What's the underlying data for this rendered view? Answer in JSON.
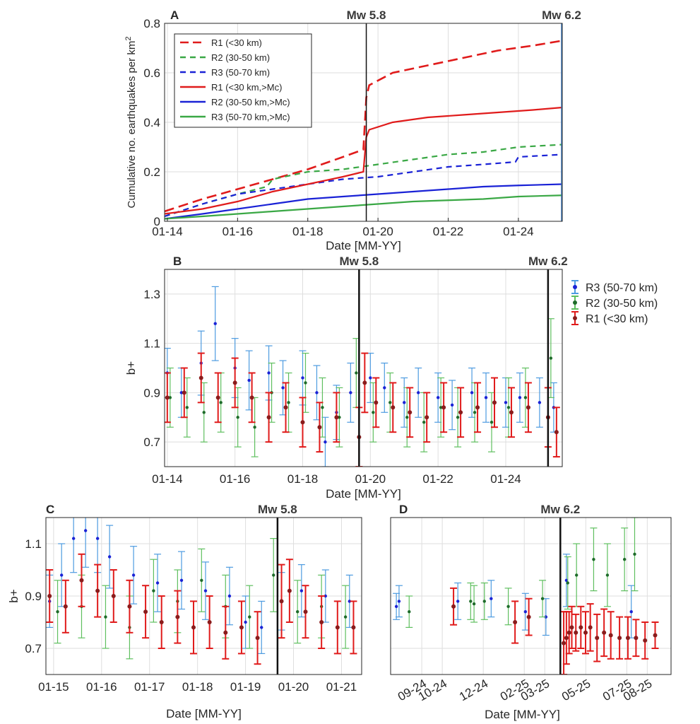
{
  "chart_data": [
    {
      "panel": "A",
      "type": "line",
      "ylabel": "Cumulative no. earthquakes per km",
      "ylabel_sup": "2",
      "xlabel": "Date [MM-YY]",
      "x_ticks": [
        "01-14",
        "01-16",
        "01-18",
        "01-20",
        "01-22",
        "01-24"
      ],
      "y_ticks": [
        "0",
        "0.2",
        "0.4",
        "0.6",
        "0.8"
      ],
      "xlim": [
        "2013-12",
        "2025-04"
      ],
      "ylim": [
        0,
        0.8
      ],
      "grid": true,
      "legend_position": "top-left",
      "events": [
        {
          "label": "Mw 5.8",
          "date": "2019-09"
        },
        {
          "label": "Mw 6.2",
          "date": "2025-04"
        }
      ],
      "series": [
        {
          "name": "R1 (<30 km)",
          "style": "dashed",
          "color": "#e01b1b",
          "x": [
            "2013-12",
            "2015-01",
            "2016-01",
            "2017-01",
            "2018-01",
            "2019-01",
            "2019-08",
            "2019-09",
            "2019-10",
            "2020-06",
            "2021-06",
            "2022-06",
            "2023-06",
            "2024-06",
            "2025-04"
          ],
          "y": [
            0.04,
            0.09,
            0.13,
            0.17,
            0.21,
            0.26,
            0.29,
            0.5,
            0.55,
            0.6,
            0.63,
            0.66,
            0.69,
            0.71,
            0.73
          ]
        },
        {
          "name": "R2 (30-50 km)",
          "style": "dashed",
          "color": "#3aa845",
          "x": [
            "2013-12",
            "2015-01",
            "2016-01",
            "2016-11",
            "2017-01",
            "2018-01",
            "2019-01",
            "2020-01",
            "2021-01",
            "2022-01",
            "2023-01",
            "2024-01",
            "2025-04"
          ],
          "y": [
            0.02,
            0.07,
            0.11,
            0.14,
            0.17,
            0.2,
            0.21,
            0.23,
            0.25,
            0.27,
            0.28,
            0.3,
            0.31
          ]
        },
        {
          "name": "R3 (50-70 km)",
          "style": "dashed",
          "color": "#1a22d6",
          "x": [
            "2013-12",
            "2015-01",
            "2016-01",
            "2017-01",
            "2018-01",
            "2019-01",
            "2020-01",
            "2021-01",
            "2022-01",
            "2023-01",
            "2023-12",
            "2024-01",
            "2025-04"
          ],
          "y": [
            0.02,
            0.07,
            0.11,
            0.13,
            0.15,
            0.17,
            0.18,
            0.2,
            0.22,
            0.23,
            0.24,
            0.26,
            0.27
          ]
        },
        {
          "name": "R1 (<30 km,>Mc)",
          "style": "solid",
          "color": "#e01b1b",
          "x": [
            "2013-12",
            "2015-01",
            "2016-01",
            "2017-01",
            "2018-01",
            "2019-01",
            "2019-08",
            "2019-09",
            "2019-10",
            "2020-06",
            "2021-06",
            "2022-06",
            "2023-06",
            "2024-06",
            "2025-04"
          ],
          "y": [
            0.03,
            0.05,
            0.08,
            0.12,
            0.15,
            0.18,
            0.2,
            0.34,
            0.37,
            0.4,
            0.42,
            0.43,
            0.44,
            0.45,
            0.46
          ]
        },
        {
          "name": "R2 (30-50 km,>Mc)",
          "style": "solid",
          "color": "#1a22d6",
          "x": [
            "2013-12",
            "2015-01",
            "2016-01",
            "2017-01",
            "2018-01",
            "2019-01",
            "2020-01",
            "2021-01",
            "2022-01",
            "2023-01",
            "2024-01",
            "2025-04"
          ],
          "y": [
            0.01,
            0.03,
            0.05,
            0.07,
            0.09,
            0.1,
            0.11,
            0.12,
            0.13,
            0.14,
            0.145,
            0.15
          ]
        },
        {
          "name": "R3 (50-70 km,>Mc)",
          "style": "solid",
          "color": "#3aa845",
          "x": [
            "2013-12",
            "2015-01",
            "2016-01",
            "2017-01",
            "2018-01",
            "2019-01",
            "2020-01",
            "2021-01",
            "2022-01",
            "2023-01",
            "2024-01",
            "2025-04"
          ],
          "y": [
            0.01,
            0.02,
            0.03,
            0.04,
            0.05,
            0.06,
            0.07,
            0.08,
            0.085,
            0.09,
            0.1,
            0.105
          ]
        }
      ]
    },
    {
      "panel": "B",
      "type": "scatter",
      "ylabel": "b+",
      "xlabel": "Date [MM-YY]",
      "x_ticks": [
        "01-14",
        "01-16",
        "01-18",
        "01-20",
        "01-22",
        "01-24"
      ],
      "y_ticks": [
        "0.7",
        "0.9",
        "1.1",
        "1.3"
      ],
      "xlim": [
        "2013-12",
        "2025-09"
      ],
      "ylim": [
        0.6,
        1.4
      ],
      "grid": true,
      "legend_position": "outside-right",
      "events": [
        {
          "label": "Mw 5.8",
          "date": "2019-09"
        },
        {
          "label": "Mw 6.2",
          "date": "2025-04"
        }
      ],
      "series": [
        {
          "name": "R3 (50-70 km)",
          "color": "#1a22d6",
          "error_color": "#4d9be0",
          "x": [
            "2014-01",
            "2014-06",
            "2015-01",
            "2015-06",
            "2016-01",
            "2016-06",
            "2017-01",
            "2017-06",
            "2018-01",
            "2018-06",
            "2018-09",
            "2019-01",
            "2019-06",
            "2020-01",
            "2020-06",
            "2021-01",
            "2021-06",
            "2022-01",
            "2022-06",
            "2023-01",
            "2023-06",
            "2024-01",
            "2024-06",
            "2025-01",
            "2025-06"
          ],
          "y": [
            0.98,
            0.9,
            1.02,
            1.18,
            1.0,
            0.95,
            0.98,
            0.92,
            0.96,
            0.9,
            0.7,
            0.82,
            0.9,
            0.96,
            0.92,
            0.86,
            0.9,
            0.88,
            0.85,
            0.9,
            0.88,
            0.86,
            0.88,
            0.86,
            0.84
          ],
          "err": [
            0.1,
            0.1,
            0.13,
            0.15,
            0.12,
            0.12,
            0.11,
            0.11,
            0.11,
            0.11,
            0.1,
            0.11,
            0.12,
            0.1,
            0.1,
            0.1,
            0.1,
            0.1,
            0.1,
            0.1,
            0.1,
            0.1,
            0.1,
            0.1,
            0.1
          ]
        },
        {
          "name": "R2 (30-50 km)",
          "color": "#1e6b2a",
          "error_color": "#5fbf5f",
          "x": [
            "2014-02",
            "2014-08",
            "2015-02",
            "2015-08",
            "2016-02",
            "2016-08",
            "2017-02",
            "2017-08",
            "2018-02",
            "2018-08",
            "2019-02",
            "2019-08",
            "2020-02",
            "2020-08",
            "2021-02",
            "2021-08",
            "2022-02",
            "2022-08",
            "2023-02",
            "2023-08",
            "2024-02",
            "2024-08",
            "2025-05"
          ],
          "y": [
            0.88,
            0.84,
            0.82,
            0.86,
            0.8,
            0.76,
            0.9,
            0.86,
            0.94,
            0.84,
            0.8,
            0.98,
            0.82,
            0.86,
            0.8,
            0.78,
            0.84,
            0.8,
            0.82,
            0.78,
            0.84,
            0.88,
            1.04
          ],
          "err": [
            0.12,
            0.12,
            0.12,
            0.12,
            0.12,
            0.12,
            0.12,
            0.12,
            0.12,
            0.12,
            0.12,
            0.14,
            0.12,
            0.12,
            0.12,
            0.12,
            0.12,
            0.12,
            0.12,
            0.12,
            0.12,
            0.12,
            0.16
          ]
        },
        {
          "name": "R1 (<30 km)",
          "color": "#8a1c1c",
          "error_color": "#e01b1b",
          "x": [
            "2014-01",
            "2014-07",
            "2015-01",
            "2015-07",
            "2016-01",
            "2016-07",
            "2017-01",
            "2017-07",
            "2018-01",
            "2018-07",
            "2019-01",
            "2019-09",
            "2019-11",
            "2020-03",
            "2020-09",
            "2021-03",
            "2021-09",
            "2022-03",
            "2022-09",
            "2023-03",
            "2023-09",
            "2024-03",
            "2024-09",
            "2025-04",
            "2025-07"
          ],
          "y": [
            0.88,
            0.9,
            0.96,
            0.88,
            0.94,
            0.88,
            0.8,
            0.84,
            0.78,
            0.76,
            0.8,
            0.72,
            0.94,
            0.86,
            0.84,
            0.82,
            0.8,
            0.84,
            0.82,
            0.84,
            0.86,
            0.82,
            0.84,
            0.8,
            0.74
          ],
          "err": [
            0.1,
            0.1,
            0.1,
            0.1,
            0.1,
            0.1,
            0.1,
            0.1,
            0.1,
            0.1,
            0.1,
            0.12,
            0.12,
            0.1,
            0.1,
            0.1,
            0.1,
            0.1,
            0.1,
            0.1,
            0.1,
            0.1,
            0.1,
            0.12,
            0.1
          ]
        }
      ]
    },
    {
      "panel": "C",
      "type": "scatter",
      "ylabel": "b+",
      "xlabel": "Date [MM-YY]",
      "x_ticks": [
        "01-15",
        "01-16",
        "01-17",
        "01-18",
        "01-19",
        "01-20",
        "01-21"
      ],
      "y_ticks": [
        "0.7",
        "0.9",
        "1.1"
      ],
      "xlim": [
        "2014-11",
        "2021-06"
      ],
      "ylim": [
        0.6,
        1.2
      ],
      "grid": true,
      "events": [
        {
          "label": "Mw 5.8",
          "date": "2019-09"
        }
      ],
      "series": [
        {
          "name": "R3 (50-70 km)",
          "color": "#1a22d6",
          "error_color": "#4d9be0",
          "x": [
            "2014-12",
            "2015-03",
            "2015-06",
            "2015-09",
            "2015-12",
            "2016-03",
            "2016-09",
            "2017-03",
            "2017-09",
            "2018-03",
            "2018-09",
            "2019-01",
            "2019-05",
            "2019-10",
            "2020-03",
            "2020-09",
            "2021-03"
          ],
          "y": [
            0.88,
            0.98,
            1.12,
            1.15,
            1.12,
            1.05,
            0.98,
            0.95,
            0.96,
            0.92,
            0.9,
            0.8,
            0.78,
            0.88,
            0.92,
            0.9,
            0.88
          ],
          "err": [
            0.1,
            0.12,
            0.13,
            0.14,
            0.13,
            0.12,
            0.11,
            0.11,
            0.11,
            0.11,
            0.11,
            0.1,
            0.1,
            0.11,
            0.1,
            0.1,
            0.1
          ]
        },
        {
          "name": "R2 (30-50 km)",
          "color": "#1e6b2a",
          "error_color": "#5fbf5f",
          "x": [
            "2015-02",
            "2015-08",
            "2016-02",
            "2016-08",
            "2017-02",
            "2017-08",
            "2018-02",
            "2018-08",
            "2019-02",
            "2019-08",
            "2020-02",
            "2020-08",
            "2021-02"
          ],
          "y": [
            0.84,
            0.86,
            0.82,
            0.78,
            0.92,
            0.88,
            0.96,
            0.86,
            0.82,
            0.98,
            0.84,
            0.86,
            0.82
          ],
          "err": [
            0.12,
            0.12,
            0.12,
            0.12,
            0.12,
            0.12,
            0.12,
            0.12,
            0.12,
            0.14,
            0.12,
            0.12,
            0.12
          ]
        },
        {
          "name": "R1 (<30 km)",
          "color": "#8a1c1c",
          "error_color": "#e01b1b",
          "x": [
            "2014-12",
            "2015-04",
            "2015-08",
            "2015-12",
            "2016-04",
            "2016-08",
            "2016-12",
            "2017-04",
            "2017-08",
            "2017-12",
            "2018-04",
            "2018-08",
            "2018-12",
            "2019-04",
            "2019-10",
            "2019-12",
            "2020-04",
            "2020-08",
            "2020-12",
            "2021-04"
          ],
          "y": [
            0.9,
            0.86,
            0.96,
            0.92,
            0.9,
            0.86,
            0.84,
            0.8,
            0.82,
            0.78,
            0.8,
            0.76,
            0.78,
            0.74,
            0.88,
            0.92,
            0.84,
            0.8,
            0.78,
            0.78
          ],
          "err": [
            0.1,
            0.1,
            0.1,
            0.1,
            0.1,
            0.1,
            0.1,
            0.1,
            0.1,
            0.1,
            0.1,
            0.1,
            0.1,
            0.1,
            0.14,
            0.12,
            0.1,
            0.1,
            0.1,
            0.1
          ]
        }
      ]
    },
    {
      "panel": "D",
      "type": "scatter",
      "ylabel": "",
      "xlabel": "Date [MM-YY]",
      "x_ticks": [
        "09-24",
        "10-24",
        "12-24",
        "02-25",
        "03-25",
        "05-25",
        "07-25",
        "08-25"
      ],
      "y_ticks": [],
      "ylim": [
        0.6,
        1.2
      ],
      "grid": true,
      "events": [
        {
          "label": "Mw 6.2",
          "date": "2025-04"
        }
      ],
      "series": [
        {
          "name": "R3 (50-70 km)",
          "color": "#1a22d6",
          "error_color": "#4d9be0",
          "x": [
            "2024-08-01",
            "2024-08-05",
            "2024-11-01",
            "2024-12-20",
            "2025-02-10",
            "2025-03-10",
            "2025-04-10",
            "2025-07-15"
          ],
          "y": [
            0.86,
            0.88,
            0.88,
            0.89,
            0.84,
            0.82,
            0.96,
            0.84
          ],
          "err": [
            0.05,
            0.06,
            0.07,
            0.07,
            0.07,
            0.07,
            0.1,
            0.1
          ]
        },
        {
          "name": "R2 (30-50 km)",
          "color": "#1e6b2a",
          "error_color": "#5fbf5f",
          "x": [
            "2024-08-20",
            "2024-11-20",
            "2024-11-25",
            "2024-12-10",
            "2025-01-15",
            "2025-03-05",
            "2025-04-12",
            "2025-04-25",
            "2025-05-20",
            "2025-06-10",
            "2025-07-05",
            "2025-07-20"
          ],
          "y": [
            0.84,
            0.88,
            0.87,
            0.88,
            0.86,
            0.89,
            0.95,
            0.98,
            1.04,
            0.98,
            1.04,
            1.06
          ],
          "err": [
            0.06,
            0.07,
            0.07,
            0.07,
            0.07,
            0.07,
            0.1,
            0.12,
            0.12,
            0.12,
            0.12,
            0.14
          ]
        },
        {
          "name": "R1 (<30 km)",
          "color": "#8a1c1c",
          "error_color": "#e01b1b",
          "x": [
            "2024-10-25",
            "2025-01-25",
            "2025-02-15",
            "2025-04-06",
            "2025-04-10",
            "2025-04-14",
            "2025-04-18",
            "2025-04-24",
            "2025-05-01",
            "2025-05-08",
            "2025-05-15",
            "2025-05-25",
            "2025-06-05",
            "2025-06-15",
            "2025-06-28",
            "2025-07-10",
            "2025-07-22",
            "2025-08-05",
            "2025-08-20"
          ],
          "y": [
            0.86,
            0.8,
            0.82,
            0.72,
            0.74,
            0.76,
            0.78,
            0.76,
            0.78,
            0.76,
            0.78,
            0.74,
            0.76,
            0.75,
            0.74,
            0.74,
            0.74,
            0.73,
            0.75
          ],
          "err": [
            0.07,
            0.08,
            0.07,
            0.12,
            0.1,
            0.08,
            0.08,
            0.07,
            0.08,
            0.08,
            0.09,
            0.09,
            0.09,
            0.09,
            0.08,
            0.08,
            0.07,
            0.07,
            0.05
          ]
        }
      ]
    }
  ]
}
